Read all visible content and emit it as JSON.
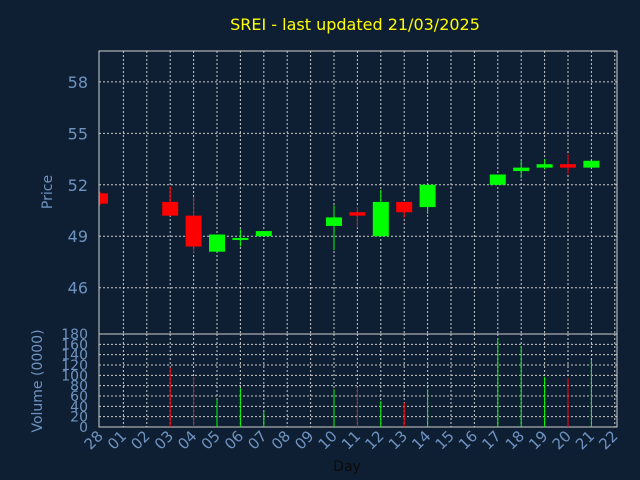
{
  "chart_data": {
    "type": "candlestick",
    "title": "SREI - last updated 21/03/2025",
    "ylabel": "Price",
    "ylabel_volume": "Volume (0000)",
    "xlabel": "Day",
    "price_ticks": [
      "58",
      "55",
      "52",
      "49",
      "46"
    ],
    "price_tick_values": [
      58,
      55,
      52,
      49,
      46
    ],
    "ylim": [
      43.3,
      59.8
    ],
    "volume_ticks": [
      "180",
      "160",
      "140",
      "120",
      "100",
      "80",
      "60",
      "40",
      "20",
      "0"
    ],
    "volume_tick_values": [
      180,
      160,
      140,
      120,
      100,
      80,
      60,
      40,
      20,
      0
    ],
    "volume_ylim": [
      0,
      180
    ],
    "day_labels": [
      "28",
      "01",
      "02",
      "03",
      "04",
      "05",
      "06",
      "07",
      "08",
      "09",
      "10",
      "11",
      "12",
      "13",
      "14",
      "15",
      "16",
      "17",
      "18",
      "19",
      "20",
      "21",
      "22"
    ],
    "candles": [
      {
        "day": "28",
        "open": 51.5,
        "close": 50.9,
        "high": 51.6,
        "low": 50.8,
        "volume": 0
      },
      {
        "day": "03",
        "open": 51.0,
        "close": 50.2,
        "high": 51.9,
        "low": 50.2,
        "volume": 115
      },
      {
        "day": "04",
        "open": 50.2,
        "close": 48.4,
        "high": 51.3,
        "low": 48.0,
        "volume": 97
      },
      {
        "day": "05",
        "open": 48.1,
        "close": 49.1,
        "high": 49.1,
        "low": 48.1,
        "volume": 53
      },
      {
        "day": "06",
        "open": 48.8,
        "close": 48.9,
        "high": 49.4,
        "low": 48.4,
        "volume": 75
      },
      {
        "day": "07",
        "open": 49.0,
        "close": 49.3,
        "high": 49.3,
        "low": 49.0,
        "volume": 30
      },
      {
        "day": "10",
        "open": 49.6,
        "close": 50.1,
        "high": 50.8,
        "low": 48.2,
        "volume": 73
      },
      {
        "day": "11",
        "open": 50.4,
        "close": 50.2,
        "high": 50.7,
        "low": 49.5,
        "volume": 77
      },
      {
        "day": "12",
        "open": 49.0,
        "close": 51.0,
        "high": 51.7,
        "low": 49.0,
        "volume": 50
      },
      {
        "day": "13",
        "open": 51.0,
        "close": 50.4,
        "high": 51.0,
        "low": 50.1,
        "volume": 47
      },
      {
        "day": "14",
        "open": 50.7,
        "close": 52.0,
        "high": 52.0,
        "low": 50.3,
        "volume": 73
      },
      {
        "day": "17",
        "open": 52.0,
        "close": 52.6,
        "high": 52.6,
        "low": 52.0,
        "volume": 172
      },
      {
        "day": "18",
        "open": 52.8,
        "close": 53.0,
        "high": 53.4,
        "low": 52.4,
        "volume": 157
      },
      {
        "day": "19",
        "open": 53.0,
        "close": 53.2,
        "high": 53.5,
        "low": 52.9,
        "volume": 97
      },
      {
        "day": "20",
        "open": 53.2,
        "close": 53.0,
        "high": 53.8,
        "low": 52.6,
        "volume": 95
      },
      {
        "day": "21",
        "open": 53.0,
        "close": 53.4,
        "high": 53.4,
        "low": 53.0,
        "volume": 130
      }
    ],
    "up_color": "#00ff00",
    "down_color": "#ff0000",
    "grid": true
  }
}
